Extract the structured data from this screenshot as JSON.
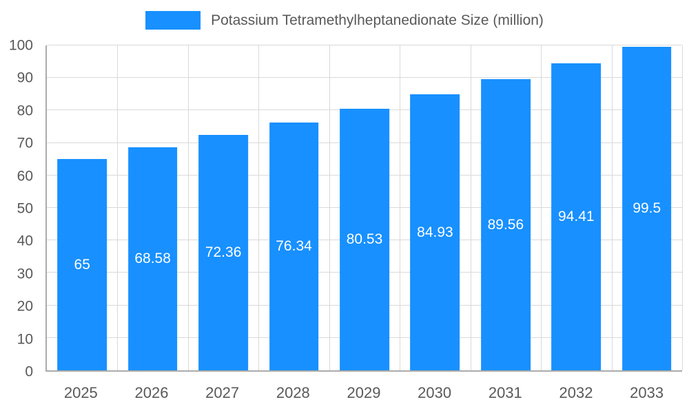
{
  "legend": {
    "position": "top"
  },
  "chart_data": {
    "type": "bar",
    "title": "Potassium Tetramethylheptanedionate Size (million)",
    "categories": [
      "2025",
      "2026",
      "2027",
      "2028",
      "2029",
      "2030",
      "2031",
      "2032",
      "2033"
    ],
    "values": [
      65,
      68.58,
      72.36,
      76.34,
      80.53,
      84.93,
      89.56,
      94.41,
      99.5
    ],
    "value_labels": [
      "65",
      "68.58",
      "72.36",
      "76.34",
      "80.53",
      "84.93",
      "89.56",
      "94.41",
      "99.5"
    ],
    "xlabel": "",
    "ylabel": "",
    "ylim": [
      0,
      100
    ],
    "yticks": [
      0,
      10,
      20,
      30,
      40,
      50,
      60,
      70,
      80,
      90,
      100
    ],
    "grid": true,
    "legend_position": "top",
    "bar_color": "#1890ff",
    "value_label_color": "#ffffff",
    "axis_text_color": "#595959",
    "gridline_color": "#d9d9d9"
  }
}
